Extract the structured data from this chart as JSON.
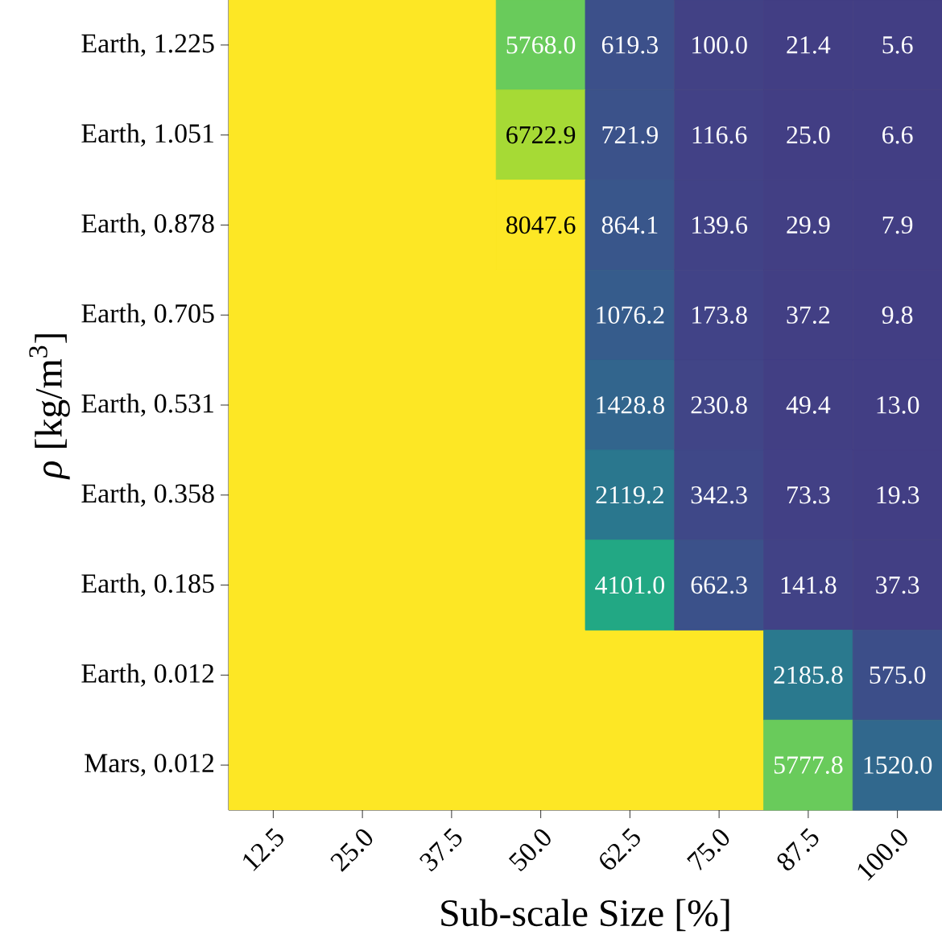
{
  "chart_data": {
    "type": "heatmap",
    "xlabel": "Sub-scale Size [%]",
    "ylabel": "*ρ* [kg/m$^{3}$]",
    "categories": [
      "12.5",
      "25.0",
      "37.5",
      "50.0",
      "62.5",
      "75.0",
      "87.5",
      "100.0"
    ],
    "y_categories": [
      "Earth, 1.225",
      "Earth, 1.051",
      "Earth, 0.878",
      "Earth, 0.705",
      "Earth, 0.531",
      "Earth, 0.358",
      "Earth, 0.185",
      "Earth, 0.012",
      "Mars, 0.012"
    ],
    "cells": [
      [
        null,
        null,
        null,
        5768.0,
        619.3,
        100.0,
        21.4,
        5.6
      ],
      [
        null,
        null,
        null,
        6722.9,
        721.9,
        116.6,
        25.0,
        6.6
      ],
      [
        null,
        null,
        null,
        8047.6,
        864.1,
        139.6,
        29.9,
        7.9
      ],
      [
        null,
        null,
        null,
        null,
        1076.2,
        173.8,
        37.2,
        9.8
      ],
      [
        null,
        null,
        null,
        null,
        1428.8,
        230.8,
        49.4,
        13.0
      ],
      [
        null,
        null,
        null,
        null,
        2119.2,
        342.3,
        73.3,
        19.3
      ],
      [
        null,
        null,
        null,
        null,
        4101.0,
        662.3,
        141.8,
        37.3
      ],
      [
        null,
        null,
        null,
        null,
        null,
        null,
        2185.8,
        575.0
      ],
      [
        null,
        null,
        null,
        null,
        null,
        null,
        5777.8,
        1520.0
      ]
    ],
    "cell_labels": [
      [
        null,
        null,
        null,
        "5768.0",
        "619.3",
        "100.0",
        "21.4",
        "5.6"
      ],
      [
        null,
        null,
        null,
        "6722.9",
        "721.9",
        "116.6",
        "25.0",
        "6.6"
      ],
      [
        null,
        null,
        null,
        "8047.6",
        "864.1",
        "139.6",
        "29.9",
        "7.9"
      ],
      [
        null,
        null,
        null,
        null,
        "1076.2",
        "173.8",
        "37.2",
        "9.8"
      ],
      [
        null,
        null,
        null,
        null,
        "1428.8",
        "230.8",
        "49.4",
        "13.0"
      ],
      [
        null,
        null,
        null,
        null,
        "2119.2",
        "342.3",
        "73.3",
        "19.3"
      ],
      [
        null,
        null,
        null,
        null,
        "4101.0",
        "662.3",
        "141.8",
        "37.3"
      ],
      [
        null,
        null,
        null,
        null,
        null,
        null,
        "2185.8",
        "575.0"
      ],
      [
        null,
        null,
        null,
        null,
        null,
        null,
        "5777.8",
        "1520.0"
      ]
    ]
  }
}
